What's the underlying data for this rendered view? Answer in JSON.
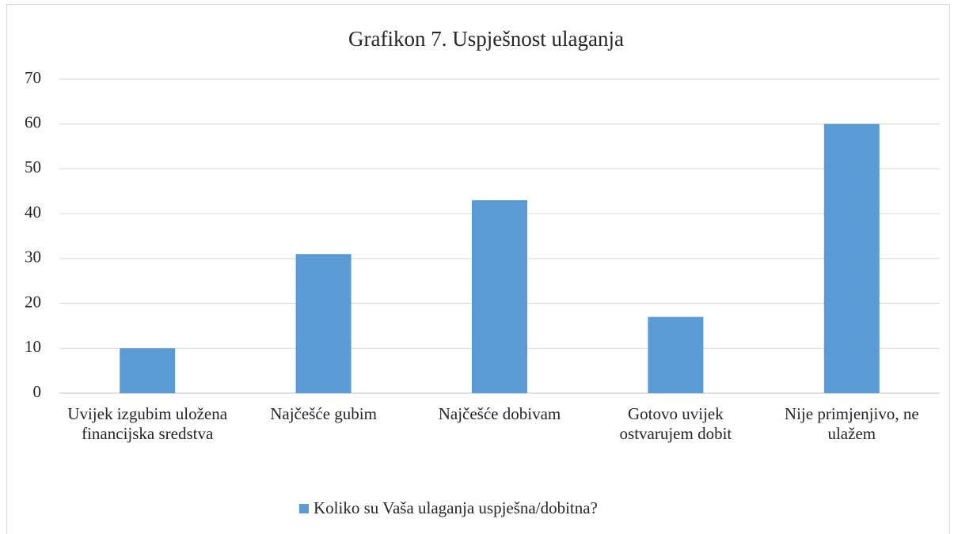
{
  "chart_data": {
    "type": "bar",
    "title": "Grafikon 7. Uspješnost ulaganja",
    "categories": [
      "Uvijek izgubim uložena financijska sredstva",
      "Najčešće gubim",
      "Najčešće dobivam",
      "Gotovo uvijek ostvarujem dobit",
      "Nije primjenjivo, ne ulažem"
    ],
    "series": [
      {
        "name": "Koliko su Vaša ulaganja uspješna/dobitna?",
        "color": "#5b9bd5",
        "values": [
          10,
          31,
          43,
          17,
          60
        ]
      }
    ],
    "ylim": [
      0,
      70
    ],
    "yticks": [
      0,
      10,
      20,
      30,
      40,
      50,
      60,
      70
    ],
    "grid": true,
    "legend": "bottom"
  }
}
